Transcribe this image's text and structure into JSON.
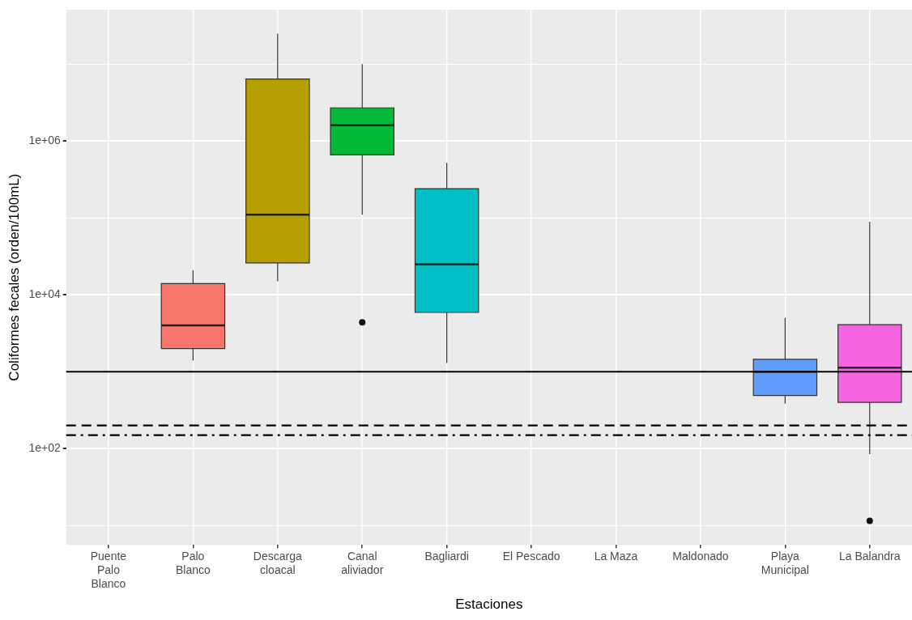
{
  "chart_data": {
    "type": "box",
    "xlabel": "Estaciones",
    "ylabel": "Coliformes fecales (orden/100mL)",
    "categories": [
      "Puente\nPalo\nBlanco",
      "Palo\nBlanco",
      "Descarga\ncloacal",
      "Canal\naliviador",
      "Bagliardi",
      "El Pescado",
      "La Maza",
      "Maldonado",
      "Playa\nMunicipal",
      "La Balandra"
    ],
    "colors": [
      "#808080",
      "#f8766d",
      "#b79f00",
      "#00ba38",
      "#00bfc4",
      "#808080",
      "#808080",
      "#808080",
      "#619cff",
      "#f564e3"
    ],
    "boxes": [
      null,
      {
        "low": 1400,
        "q1": 2000,
        "median": 4000,
        "q3": 14000,
        "high": 21000
      },
      {
        "low": 15000,
        "q1": 26000,
        "median": 110000,
        "q3": 6400000,
        "high": 25000000
      },
      {
        "low": 110000,
        "q1": 660000,
        "median": 1600000,
        "q3": 2700000,
        "high": 10000000,
        "outliers": [
          4400
        ]
      },
      {
        "low": 1300,
        "q1": 5900,
        "median": 25000,
        "q3": 240000,
        "high": 520000
      },
      null,
      null,
      null,
      {
        "low": 385,
        "q1": 490,
        "median": 1000,
        "q3": 1450,
        "high": 5000
      },
      {
        "low": 85,
        "q1": 400,
        "median": 1130,
        "q3": 4100,
        "high": 89000,
        "outliers": [
          11.5
        ]
      }
    ],
    "log": "y",
    "ylim": [
      5.6,
      51000000
    ],
    "yticks": [
      {
        "value": 10,
        "label": null
      },
      {
        "value": 100,
        "label": "1e+02"
      },
      {
        "value": 1000,
        "label": null
      },
      {
        "value": 10000,
        "label": "1e+04"
      },
      {
        "value": 100000,
        "label": null
      },
      {
        "value": 1000000,
        "label": "1e+06"
      },
      {
        "value": 10000000,
        "label": null
      }
    ],
    "ref_lines": [
      {
        "axis": "y",
        "value": 1000,
        "line_style": "solid",
        "color": "#000000"
      },
      {
        "axis": "y",
        "value": 200,
        "line_style": "dashed",
        "color": "#000000"
      },
      {
        "axis": "y",
        "value": 150,
        "line_style": "dashdot",
        "color": "#000000"
      }
    ],
    "grid": true,
    "legend": false
  }
}
